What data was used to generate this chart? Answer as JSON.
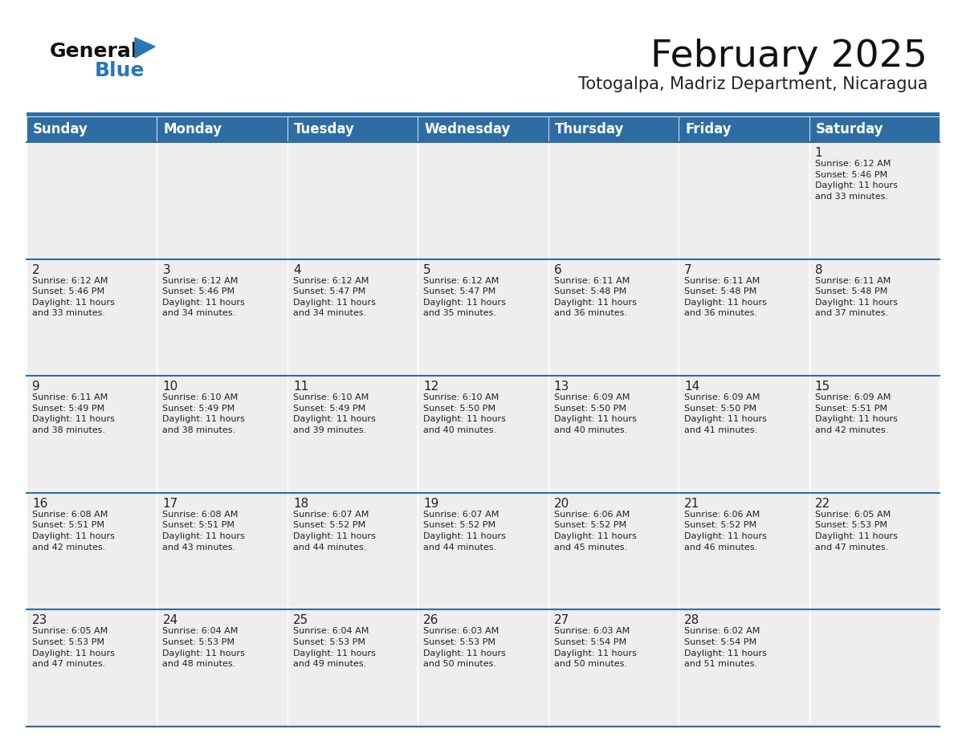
{
  "title": "February 2025",
  "subtitle": "Totogalpa, Madriz Department, Nicaragua",
  "header_color": "#2d6da3",
  "header_text_color": "#ffffff",
  "background_color": "#ffffff",
  "cell_bg_color": "#eeeeee",
  "border_color": "#2d6da3",
  "text_color": "#222222",
  "day_number_color": "#222222",
  "day_headers": [
    "Sunday",
    "Monday",
    "Tuesday",
    "Wednesday",
    "Thursday",
    "Friday",
    "Saturday"
  ],
  "title_fontsize": 34,
  "subtitle_fontsize": 15,
  "day_header_fontsize": 12,
  "cell_number_fontsize": 11,
  "cell_text_fontsize": 8,
  "calendar_data": [
    [
      {
        "day": null,
        "info": null
      },
      {
        "day": null,
        "info": null
      },
      {
        "day": null,
        "info": null
      },
      {
        "day": null,
        "info": null
      },
      {
        "day": null,
        "info": null
      },
      {
        "day": null,
        "info": null
      },
      {
        "day": 1,
        "info": "Sunrise: 6:12 AM\nSunset: 5:46 PM\nDaylight: 11 hours\nand 33 minutes."
      }
    ],
    [
      {
        "day": 2,
        "info": "Sunrise: 6:12 AM\nSunset: 5:46 PM\nDaylight: 11 hours\nand 33 minutes."
      },
      {
        "day": 3,
        "info": "Sunrise: 6:12 AM\nSunset: 5:46 PM\nDaylight: 11 hours\nand 34 minutes."
      },
      {
        "day": 4,
        "info": "Sunrise: 6:12 AM\nSunset: 5:47 PM\nDaylight: 11 hours\nand 34 minutes."
      },
      {
        "day": 5,
        "info": "Sunrise: 6:12 AM\nSunset: 5:47 PM\nDaylight: 11 hours\nand 35 minutes."
      },
      {
        "day": 6,
        "info": "Sunrise: 6:11 AM\nSunset: 5:48 PM\nDaylight: 11 hours\nand 36 minutes."
      },
      {
        "day": 7,
        "info": "Sunrise: 6:11 AM\nSunset: 5:48 PM\nDaylight: 11 hours\nand 36 minutes."
      },
      {
        "day": 8,
        "info": "Sunrise: 6:11 AM\nSunset: 5:48 PM\nDaylight: 11 hours\nand 37 minutes."
      }
    ],
    [
      {
        "day": 9,
        "info": "Sunrise: 6:11 AM\nSunset: 5:49 PM\nDaylight: 11 hours\nand 38 minutes."
      },
      {
        "day": 10,
        "info": "Sunrise: 6:10 AM\nSunset: 5:49 PM\nDaylight: 11 hours\nand 38 minutes."
      },
      {
        "day": 11,
        "info": "Sunrise: 6:10 AM\nSunset: 5:49 PM\nDaylight: 11 hours\nand 39 minutes."
      },
      {
        "day": 12,
        "info": "Sunrise: 6:10 AM\nSunset: 5:50 PM\nDaylight: 11 hours\nand 40 minutes."
      },
      {
        "day": 13,
        "info": "Sunrise: 6:09 AM\nSunset: 5:50 PM\nDaylight: 11 hours\nand 40 minutes."
      },
      {
        "day": 14,
        "info": "Sunrise: 6:09 AM\nSunset: 5:50 PM\nDaylight: 11 hours\nand 41 minutes."
      },
      {
        "day": 15,
        "info": "Sunrise: 6:09 AM\nSunset: 5:51 PM\nDaylight: 11 hours\nand 42 minutes."
      }
    ],
    [
      {
        "day": 16,
        "info": "Sunrise: 6:08 AM\nSunset: 5:51 PM\nDaylight: 11 hours\nand 42 minutes."
      },
      {
        "day": 17,
        "info": "Sunrise: 6:08 AM\nSunset: 5:51 PM\nDaylight: 11 hours\nand 43 minutes."
      },
      {
        "day": 18,
        "info": "Sunrise: 6:07 AM\nSunset: 5:52 PM\nDaylight: 11 hours\nand 44 minutes."
      },
      {
        "day": 19,
        "info": "Sunrise: 6:07 AM\nSunset: 5:52 PM\nDaylight: 11 hours\nand 44 minutes."
      },
      {
        "day": 20,
        "info": "Sunrise: 6:06 AM\nSunset: 5:52 PM\nDaylight: 11 hours\nand 45 minutes."
      },
      {
        "day": 21,
        "info": "Sunrise: 6:06 AM\nSunset: 5:52 PM\nDaylight: 11 hours\nand 46 minutes."
      },
      {
        "day": 22,
        "info": "Sunrise: 6:05 AM\nSunset: 5:53 PM\nDaylight: 11 hours\nand 47 minutes."
      }
    ],
    [
      {
        "day": 23,
        "info": "Sunrise: 6:05 AM\nSunset: 5:53 PM\nDaylight: 11 hours\nand 47 minutes."
      },
      {
        "day": 24,
        "info": "Sunrise: 6:04 AM\nSunset: 5:53 PM\nDaylight: 11 hours\nand 48 minutes."
      },
      {
        "day": 25,
        "info": "Sunrise: 6:04 AM\nSunset: 5:53 PM\nDaylight: 11 hours\nand 49 minutes."
      },
      {
        "day": 26,
        "info": "Sunrise: 6:03 AM\nSunset: 5:53 PM\nDaylight: 11 hours\nand 50 minutes."
      },
      {
        "day": 27,
        "info": "Sunrise: 6:03 AM\nSunset: 5:54 PM\nDaylight: 11 hours\nand 50 minutes."
      },
      {
        "day": 28,
        "info": "Sunrise: 6:02 AM\nSunset: 5:54 PM\nDaylight: 11 hours\nand 51 minutes."
      },
      {
        "day": null,
        "info": null
      }
    ]
  ],
  "logo_general_color": "#111111",
  "logo_blue_color": "#2878b8",
  "logo_triangle_color": "#2878b8"
}
